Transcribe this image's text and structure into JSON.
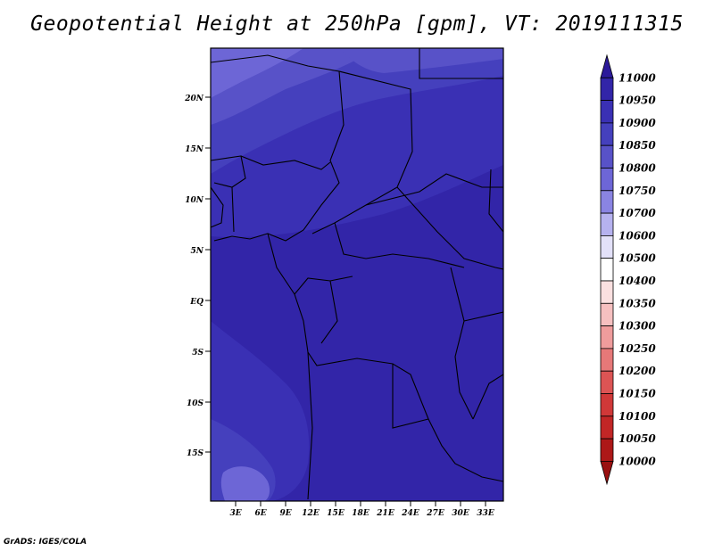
{
  "title": "Geopotential Height at 250hPa [gpm], VT: 2019111315",
  "credit": "GrADS: IGES/COLA",
  "latitude_labels": [
    "20N",
    "15N",
    "10N",
    "5N",
    "EQ",
    "5S",
    "10S",
    "15S"
  ],
  "longitude_labels": [
    "3E",
    "6E",
    "9E",
    "12E",
    "15E",
    "18E",
    "21E",
    "24E",
    "27E",
    "30E",
    "33E"
  ],
  "colorbar": {
    "levels": [
      "11000",
      "10950",
      "10900",
      "10850",
      "10800",
      "10750",
      "10700",
      "10600",
      "10500",
      "10400",
      "10350",
      "10300",
      "10250",
      "10200",
      "10150",
      "10100",
      "10050",
      "10000"
    ],
    "colors": [
      "#2c1a9a",
      "#3225a8",
      "#3a30b4",
      "#4540bd",
      "#5852c8",
      "#6d66d6",
      "#8a84e2",
      "#b6b2ef",
      "#e3e1f9",
      "#ffffff",
      "#fbe0e0",
      "#f6c0c0",
      "#ef9c9c",
      "#e67878",
      "#dc5454",
      "#d03838",
      "#c22626",
      "#ad1818",
      "#991010"
    ]
  },
  "chart_data": {
    "type": "heatmap",
    "title": "Geopotential Height at 250hPa [gpm], VT: 2019111315",
    "xlim": [
      0,
      35
    ],
    "ylim": [
      -20,
      25
    ],
    "x_ticks": [
      3,
      6,
      9,
      12,
      15,
      18,
      21,
      24,
      27,
      30,
      33
    ],
    "y_ticks": [
      20,
      15,
      10,
      5,
      0,
      -5,
      -10,
      -15
    ],
    "colorbar_levels": [
      11000,
      10950,
      10900,
      10850,
      10800,
      10750,
      10700,
      10600,
      10500,
      10400,
      10350,
      10300,
      10250,
      10200,
      10150,
      10100,
      10050,
      10000
    ],
    "field_bands": [
      {
        "range": "10800-10850",
        "color": "#5852c8",
        "region": "northwest corner"
      },
      {
        "range": "10850-10900",
        "color": "#4540bd",
        "region": "northern band and southwest"
      },
      {
        "range": "10900-10950",
        "color": "#3a30b4",
        "region": "central band"
      },
      {
        "range": "10950-11000",
        "color": "#3225a8",
        "region": "equatorial and southeast"
      }
    ]
  }
}
